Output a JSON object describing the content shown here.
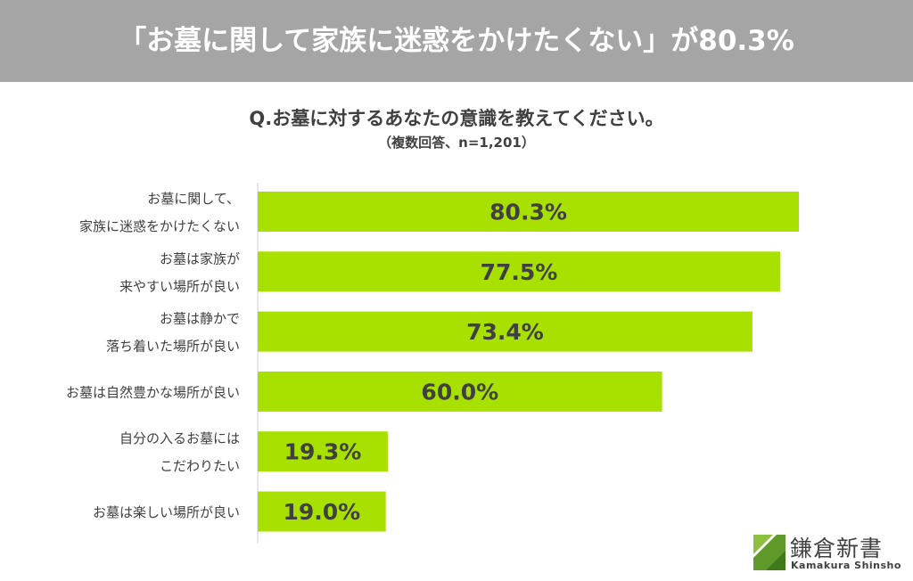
{
  "header": {
    "title": "「お墓に関して家族に迷惑をかけたくない」が80.3%"
  },
  "question": "Q.お墓に対するあなたの意識を教えてください。",
  "subnote": "（複数回答、n=1,201）",
  "colors": {
    "bar": "#a8e000",
    "banner": "#a5a5a5",
    "text": "#404040"
  },
  "chart_data": {
    "type": "bar",
    "orientation": "horizontal",
    "categories": [
      [
        "お墓に関して、",
        "家族に迷惑をかけたくない"
      ],
      [
        "お墓は家族が",
        "来やすい場所が良い"
      ],
      [
        "お墓は静かで",
        "落ち着いた場所が良い"
      ],
      [
        "お墓は自然豊かな場所が良い"
      ],
      [
        "自分の入るお墓には",
        "こだわりたい"
      ],
      [
        "お墓は楽しい場所が良い"
      ]
    ],
    "values": [
      80.3,
      77.5,
      73.4,
      60.0,
      19.3,
      19.0
    ],
    "data_labels": [
      "80.3%",
      "77.5%",
      "73.4%",
      "60.0%",
      "19.3%",
      "19.0%"
    ],
    "xlim": [
      0,
      100
    ],
    "grid": false
  },
  "logo": {
    "name": "鎌倉新書",
    "roman": "Kamakura Shinsho",
    "icon": "kamakura-shinsho-logo-mark"
  }
}
